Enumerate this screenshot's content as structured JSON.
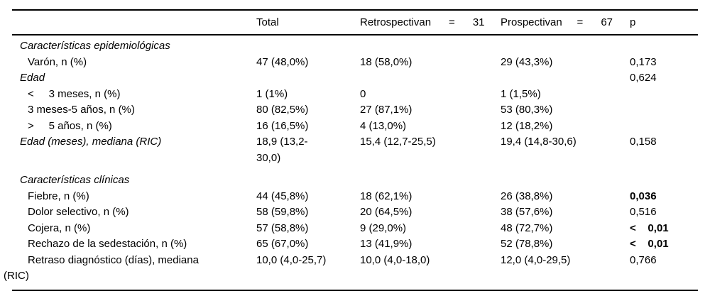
{
  "table": {
    "header": {
      "label": "",
      "total": "Total",
      "retro": "Retrospectivan      =      31",
      "pro": "Prospectivan     =      67",
      "p": "p"
    },
    "rows": [
      {
        "type": "section",
        "label": "Características epidemiológicas"
      },
      {
        "type": "item",
        "label": "Varón, n (%)",
        "total": "47 (48,0%)",
        "retro": "18 (58,0%)",
        "pro": "29 (43,3%)",
        "p": "0,173"
      },
      {
        "type": "section",
        "label": "Edad",
        "p": "0,624"
      },
      {
        "type": "item",
        "label": "<     3 meses, n (%)",
        "total": "1 (1%)",
        "retro": "0",
        "pro": "1 (1,5%)"
      },
      {
        "type": "item",
        "label": "3 meses-5 años, n (%)",
        "total": "80 (82,5%)",
        "retro": "27 (87,1%)",
        "pro": "53 (80,3%)"
      },
      {
        "type": "item",
        "label": ">     5 años, n (%)",
        "total": "16 (16,5%)",
        "retro": "4 (13,0%)",
        "pro": "12 (18,2%)"
      },
      {
        "type": "section",
        "label": "Edad (meses), mediana (RIC)",
        "total": "18,9 (13,2-30,0)",
        "retro": "15,4 (12,7-25,5)",
        "pro": "19,4 (14,8-30,6)",
        "p": "0,158"
      },
      {
        "type": "section",
        "label": "Características clínicas",
        "gap_above": true
      },
      {
        "type": "item",
        "label": "Fiebre, n (%)",
        "total": "44 (45,8%)",
        "retro": "18 (62,1%)",
        "pro": "26 (38,8%)",
        "p": "0,036",
        "p_bold": true
      },
      {
        "type": "item",
        "label": "Dolor selectivo, n (%)",
        "total": "58 (59,8%)",
        "retro": "20 (64,5%)",
        "pro": "38 (57,6%)",
        "p": "0,516"
      },
      {
        "type": "item",
        "label": "Cojera, n (%)",
        "total": "57 (58,8%)",
        "retro": "9 (29,0%)",
        "pro": "48 (72,7%)",
        "p": "<    0,01",
        "p_bold": true
      },
      {
        "type": "item",
        "label": "Rechazo de la sedestación, n (%)",
        "total": "65 (67,0%)",
        "retro": "13 (41,9%)",
        "pro": "52 (78,8%)",
        "p": "<    0,01",
        "p_bold": true
      },
      {
        "type": "item",
        "label": "Retraso diagnóstico (días), mediana (RIC)",
        "total": "10,0 (4,0-25,7)",
        "retro": "10,0 (4,0-18,0)",
        "pro": "12,0 (4,0-29,5)",
        "p": "0,766"
      }
    ]
  }
}
